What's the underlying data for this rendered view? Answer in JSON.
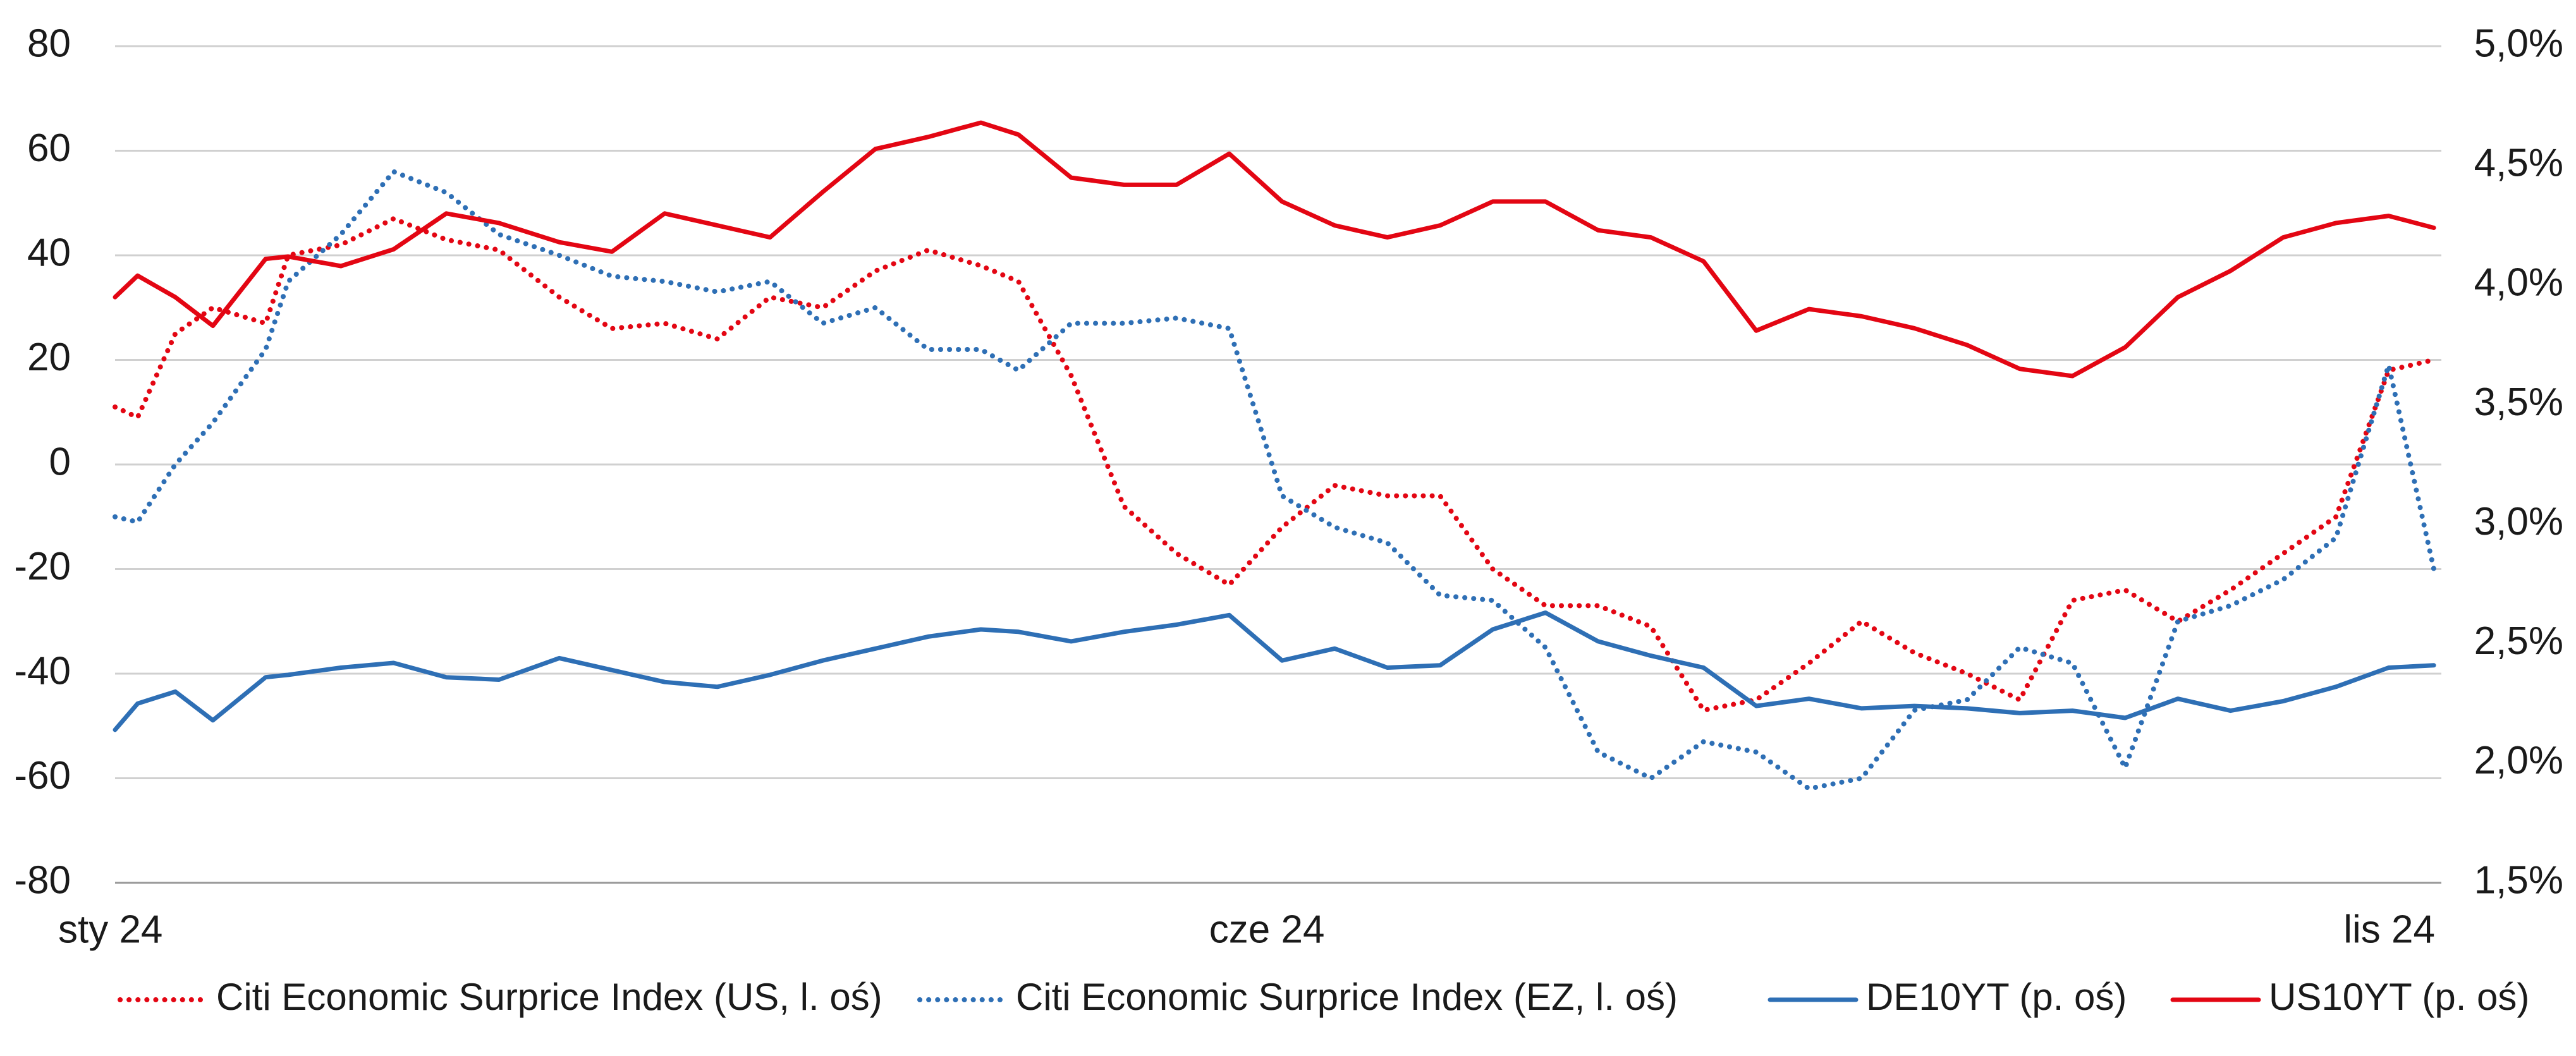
{
  "chart_data": {
    "type": "line",
    "title": "",
    "x_tick_labels": [
      "sty 24",
      "cze 24",
      "lis 24"
    ],
    "x_tick_values": [
      "2024-01-02",
      "2024-06-03",
      "2024-11-01"
    ],
    "x_range": [
      "2024-01-02",
      "2024-11-06"
    ],
    "y_left": {
      "range": [
        -80,
        80
      ],
      "ticks": [
        80,
        60,
        40,
        20,
        0,
        -20,
        -40,
        -60,
        -80
      ],
      "tick_labels": [
        "80",
        "60",
        "40",
        "20",
        "0",
        "-20",
        "-40",
        "-60",
        "-80"
      ]
    },
    "y_right": {
      "range": [
        1.5,
        5.0
      ],
      "ticks": [
        5.0,
        4.5,
        4.0,
        3.5,
        3.0,
        2.5,
        2.0,
        1.5
      ],
      "tick_labels": [
        "5,0%",
        "4,5%",
        "4,0%",
        "3,5%",
        "3,0%",
        "2,5%",
        "2,0%",
        "1,5%"
      ]
    },
    "grid": "horizontal",
    "legend_position": "bottom",
    "series": [
      {
        "name": "Citi Economic Surprice Index (US, l. oś)",
        "axis": "left",
        "style": "dotted",
        "color": "#e30613",
        "x": [
          "2024-01-02",
          "2024-01-05",
          "2024-01-10",
          "2024-01-15",
          "2024-01-22",
          "2024-01-25",
          "2024-02-01",
          "2024-02-08",
          "2024-02-15",
          "2024-02-22",
          "2024-03-01",
          "2024-03-08",
          "2024-03-15",
          "2024-03-22",
          "2024-03-29",
          "2024-04-05",
          "2024-04-12",
          "2024-04-19",
          "2024-04-26",
          "2024-05-01",
          "2024-05-08",
          "2024-05-15",
          "2024-05-22",
          "2024-05-29",
          "2024-06-05",
          "2024-06-12",
          "2024-06-19",
          "2024-06-26",
          "2024-07-03",
          "2024-07-10",
          "2024-07-17",
          "2024-07-24",
          "2024-07-31",
          "2024-08-07",
          "2024-08-14",
          "2024-08-21",
          "2024-08-28",
          "2024-09-04",
          "2024-09-11",
          "2024-09-18",
          "2024-09-25",
          "2024-10-02",
          "2024-10-09",
          "2024-10-16",
          "2024-10-23",
          "2024-10-30",
          "2024-11-05"
        ],
        "values": [
          11,
          9,
          25,
          30,
          27,
          40,
          42,
          47,
          43,
          41,
          32,
          26,
          27,
          24,
          32,
          30,
          37,
          41,
          38,
          35,
          17,
          -8,
          -17,
          -23,
          -12,
          -4,
          -6,
          -6,
          -20,
          -27,
          -27,
          -31,
          -47,
          -45,
          -38,
          -30,
          -36,
          -40,
          -45,
          -26,
          -24,
          -30,
          -24,
          -17,
          -10,
          18,
          20
        ]
      },
      {
        "name": "Citi Economic Surprice Index (EZ, l. oś)",
        "axis": "left",
        "style": "dotted",
        "color": "#2e6fb5",
        "x": [
          "2024-01-02",
          "2024-01-05",
          "2024-01-10",
          "2024-01-15",
          "2024-01-22",
          "2024-01-25",
          "2024-02-01",
          "2024-02-08",
          "2024-02-15",
          "2024-02-22",
          "2024-03-01",
          "2024-03-08",
          "2024-03-15",
          "2024-03-22",
          "2024-03-29",
          "2024-04-05",
          "2024-04-12",
          "2024-04-19",
          "2024-04-26",
          "2024-05-01",
          "2024-05-08",
          "2024-05-15",
          "2024-05-22",
          "2024-05-29",
          "2024-06-05",
          "2024-06-12",
          "2024-06-19",
          "2024-06-26",
          "2024-07-03",
          "2024-07-10",
          "2024-07-17",
          "2024-07-24",
          "2024-07-31",
          "2024-08-07",
          "2024-08-14",
          "2024-08-21",
          "2024-08-28",
          "2024-09-04",
          "2024-09-11",
          "2024-09-18",
          "2024-09-25",
          "2024-10-02",
          "2024-10-09",
          "2024-10-16",
          "2024-10-23",
          "2024-10-30",
          "2024-11-05"
        ],
        "values": [
          -10,
          -11,
          0,
          8,
          22,
          35,
          44,
          56,
          52,
          44,
          40,
          36,
          35,
          33,
          35,
          27,
          30,
          22,
          22,
          18,
          27,
          27,
          28,
          26,
          -6,
          -12,
          -15,
          -25,
          -26,
          -35,
          -55,
          -60,
          -53,
          -55,
          -62,
          -60,
          -47,
          -45,
          -35,
          -38,
          -58,
          -30,
          -27,
          -22,
          -14,
          19,
          -20
        ]
      },
      {
        "name": "DE10YT (p. oś)",
        "axis": "right",
        "style": "solid",
        "color": "#2e6fb5",
        "x": [
          "2024-01-02",
          "2024-01-05",
          "2024-01-10",
          "2024-01-15",
          "2024-01-22",
          "2024-01-25",
          "2024-02-01",
          "2024-02-08",
          "2024-02-15",
          "2024-02-22",
          "2024-03-01",
          "2024-03-08",
          "2024-03-15",
          "2024-03-22",
          "2024-03-29",
          "2024-04-05",
          "2024-04-12",
          "2024-04-19",
          "2024-04-26",
          "2024-05-01",
          "2024-05-08",
          "2024-05-15",
          "2024-05-22",
          "2024-05-29",
          "2024-06-05",
          "2024-06-12",
          "2024-06-19",
          "2024-06-26",
          "2024-07-03",
          "2024-07-10",
          "2024-07-17",
          "2024-07-24",
          "2024-07-31",
          "2024-08-07",
          "2024-08-14",
          "2024-08-21",
          "2024-08-28",
          "2024-09-04",
          "2024-09-11",
          "2024-09-18",
          "2024-09-25",
          "2024-10-02",
          "2024-10-09",
          "2024-10-16",
          "2024-10-23",
          "2024-10-30",
          "2024-11-05"
        ],
        "values": [
          2.14,
          2.25,
          2.3,
          2.18,
          2.36,
          2.37,
          2.4,
          2.42,
          2.36,
          2.35,
          2.44,
          2.39,
          2.34,
          2.32,
          2.37,
          2.43,
          2.48,
          2.53,
          2.56,
          2.55,
          2.51,
          2.55,
          2.58,
          2.62,
          2.43,
          2.48,
          2.4,
          2.41,
          2.56,
          2.63,
          2.51,
          2.45,
          2.4,
          2.24,
          2.27,
          2.23,
          2.24,
          2.23,
          2.21,
          2.22,
          2.19,
          2.27,
          2.22,
          2.26,
          2.32,
          2.4,
          2.41
        ]
      },
      {
        "name": "US10YT (p. oś)",
        "axis": "right",
        "style": "solid",
        "color": "#e30613",
        "x": [
          "2024-01-02",
          "2024-01-05",
          "2024-01-10",
          "2024-01-15",
          "2024-01-22",
          "2024-01-25",
          "2024-02-01",
          "2024-02-08",
          "2024-02-15",
          "2024-02-22",
          "2024-03-01",
          "2024-03-08",
          "2024-03-15",
          "2024-03-22",
          "2024-03-29",
          "2024-04-05",
          "2024-04-12",
          "2024-04-19",
          "2024-04-26",
          "2024-05-01",
          "2024-05-08",
          "2024-05-15",
          "2024-05-22",
          "2024-05-29",
          "2024-06-05",
          "2024-06-12",
          "2024-06-19",
          "2024-06-26",
          "2024-07-03",
          "2024-07-10",
          "2024-07-17",
          "2024-07-24",
          "2024-07-31",
          "2024-08-07",
          "2024-08-14",
          "2024-08-21",
          "2024-08-28",
          "2024-09-04",
          "2024-09-11",
          "2024-09-18",
          "2024-09-25",
          "2024-10-02",
          "2024-10-09",
          "2024-10-16",
          "2024-10-23",
          "2024-10-30",
          "2024-11-05"
        ],
        "values": [
          3.95,
          4.04,
          3.95,
          3.83,
          4.11,
          4.12,
          4.08,
          4.15,
          4.3,
          4.26,
          4.18,
          4.14,
          4.3,
          4.25,
          4.2,
          4.39,
          4.57,
          4.62,
          4.68,
          4.63,
          4.45,
          4.42,
          4.42,
          4.55,
          4.35,
          4.25,
          4.2,
          4.25,
          4.35,
          4.35,
          4.23,
          4.2,
          4.1,
          3.81,
          3.9,
          3.87,
          3.82,
          3.75,
          3.65,
          3.62,
          3.74,
          3.95,
          4.06,
          4.2,
          4.26,
          4.29,
          4.24
        ]
      }
    ]
  }
}
